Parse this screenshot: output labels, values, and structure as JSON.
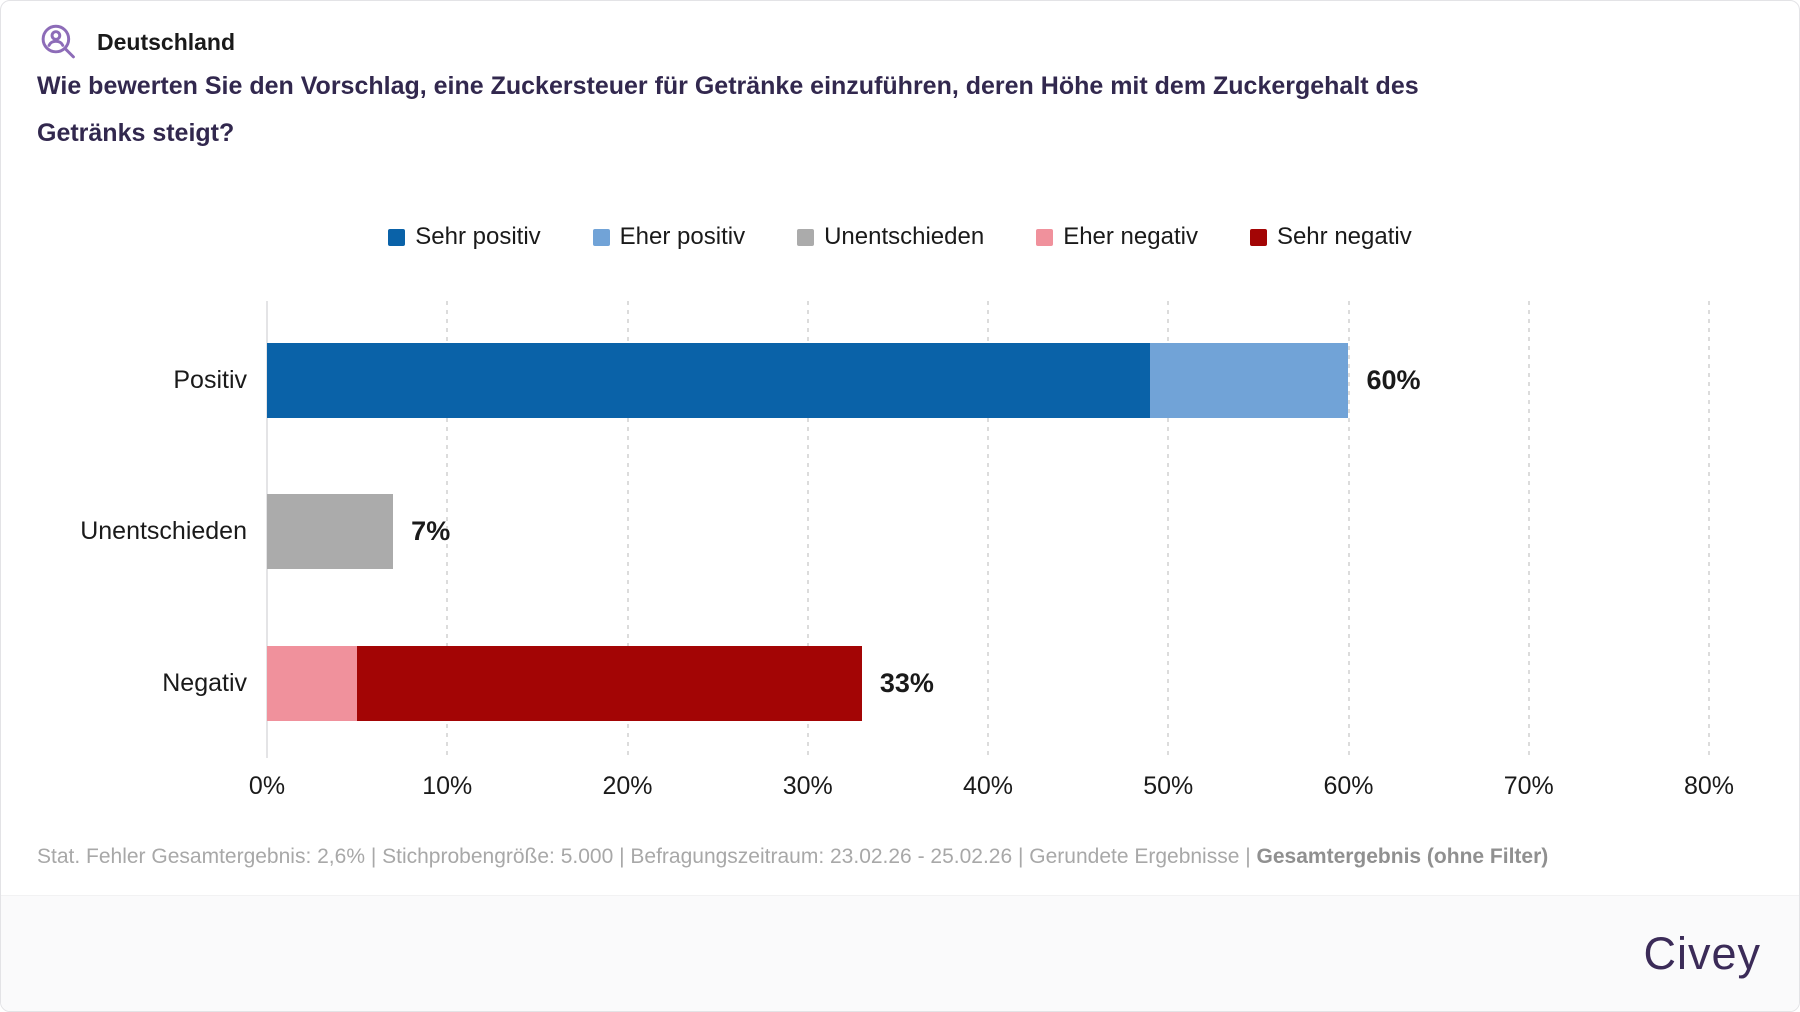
{
  "header": {
    "region_label": "Deutschland",
    "question": "Wie bewerten Sie den Vorschlag, eine Zuckersteuer für Getränke einzuführen, deren Höhe mit dem Zuckergehalt des Getränks steigt?"
  },
  "icons": {
    "region_icon": "person-search-icon",
    "region_icon_color": "#8d6cb8"
  },
  "legend": [
    {
      "label": "Sehr positiv",
      "color": "#0a62a8"
    },
    {
      "label": "Eher positiv",
      "color": "#71a3d7"
    },
    {
      "label": "Unentschieden",
      "color": "#ababab"
    },
    {
      "label": "Eher negativ",
      "color": "#f0919c"
    },
    {
      "label": "Sehr negativ",
      "color": "#a30505"
    }
  ],
  "chart_data": {
    "type": "bar",
    "orientation": "horizontal",
    "stacked": true,
    "categories": [
      "Positiv",
      "Unentschieden",
      "Negativ"
    ],
    "series": [
      {
        "name": "Sehr positiv",
        "color": "#0a62a8",
        "values": [
          49,
          0,
          0
        ]
      },
      {
        "name": "Eher positiv",
        "color": "#71a3d7",
        "values": [
          11,
          0,
          0
        ]
      },
      {
        "name": "Unentschieden",
        "color": "#ababab",
        "values": [
          0,
          7,
          0
        ]
      },
      {
        "name": "Eher negativ",
        "color": "#f0919c",
        "values": [
          0,
          0,
          5
        ]
      },
      {
        "name": "Sehr negativ",
        "color": "#a30505",
        "values": [
          0,
          0,
          28
        ]
      }
    ],
    "totals_labels": [
      "60%",
      "7%",
      "33%"
    ],
    "x_ticks": [
      "0%",
      "10%",
      "20%",
      "30%",
      "40%",
      "50%",
      "60%",
      "70%",
      "80%"
    ],
    "xlim": [
      0,
      80
    ],
    "grid": "vertical-dotted",
    "legend_position": "top"
  },
  "footer": {
    "stats": "Stat. Fehler Gesamtergebnis: 2,6% | Stichprobengröße: 5.000 | Befragungszeitraum: 23.02.26 - 25.02.26 | Gerundete Ergebnisse | ",
    "stats_bold": "Gesamtergebnis (ohne Filter)",
    "brand": "Civey"
  }
}
